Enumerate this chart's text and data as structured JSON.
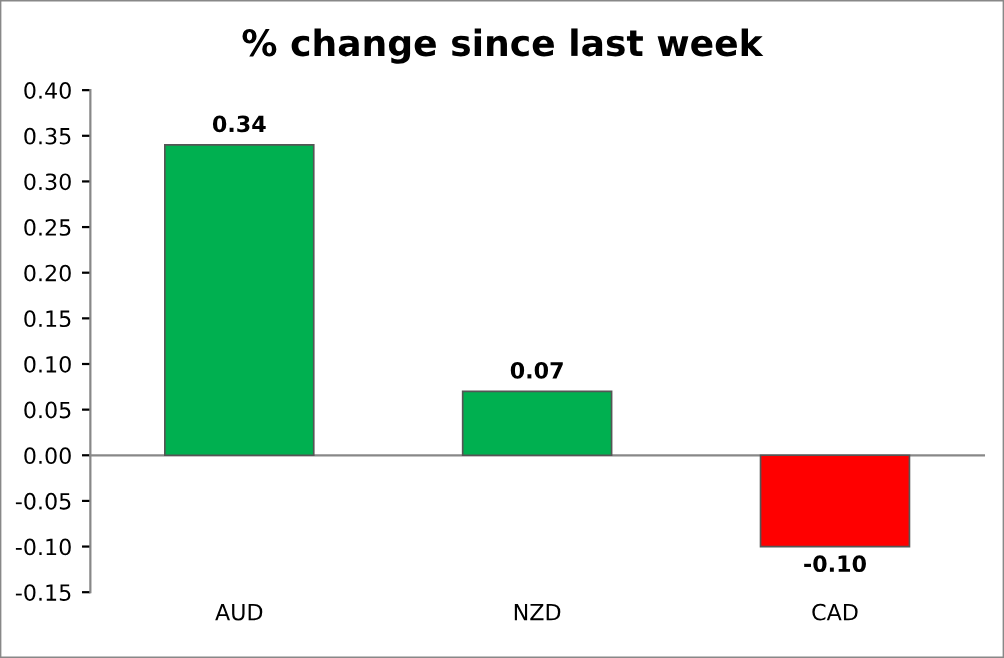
{
  "chart_data": {
    "type": "bar",
    "title": "% change since last week",
    "categories": [
      "AUD",
      "NZD",
      "CAD"
    ],
    "values": [
      0.34,
      0.07,
      -0.1
    ],
    "colors": [
      "#00b050",
      "#00b050",
      "#ff0000"
    ],
    "value_labels": [
      "0.34",
      "0.07",
      "-0.10"
    ],
    "ylim": [
      -0.15,
      0.4
    ],
    "yticks": [
      {
        "value": 0.4,
        "label": "0.40"
      },
      {
        "value": 0.35,
        "label": "0.35"
      },
      {
        "value": 0.3,
        "label": "0.30"
      },
      {
        "value": 0.25,
        "label": "0.25"
      },
      {
        "value": 0.2,
        "label": "0.20"
      },
      {
        "value": 0.15,
        "label": "0.15"
      },
      {
        "value": 0.1,
        "label": "0.10"
      },
      {
        "value": 0.05,
        "label": "0.05"
      },
      {
        "value": 0,
        "label": "0.00"
      },
      {
        "value": -0.05,
        "label": "-0.05"
      },
      {
        "value": -0.1,
        "label": "-0.10"
      },
      {
        "value": -0.15,
        "label": "-0.15"
      }
    ],
    "legend": false
  }
}
